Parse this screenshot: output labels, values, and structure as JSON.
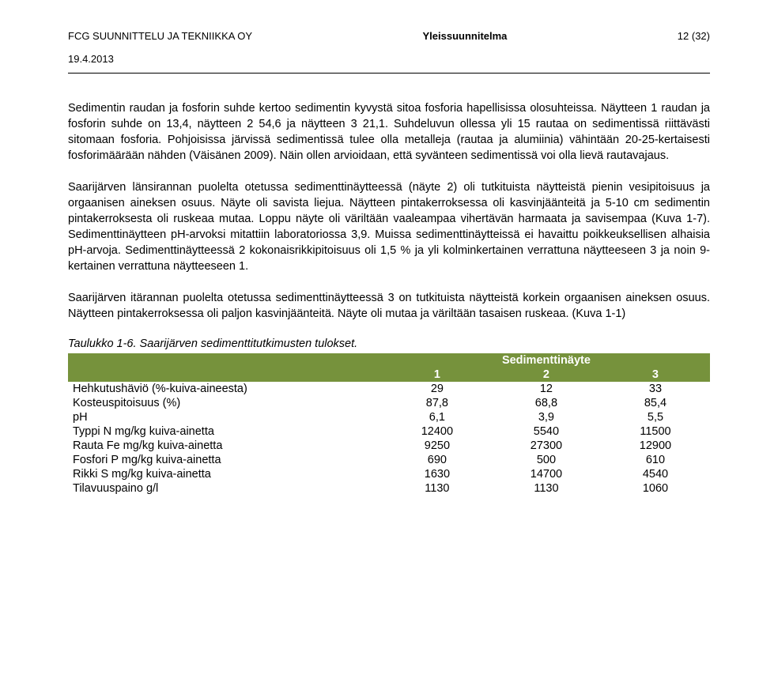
{
  "header": {
    "company": "FCG SUUNNITTELU JA TEKNIIKKA OY",
    "doc_title": "Yleissuunnitelma",
    "page_of": "12 (32)",
    "date": "19.4.2013"
  },
  "paragraphs": {
    "p1": "Sedimentin raudan ja fosforin suhde kertoo sedimentin kyvystä sitoa fosforia hapellisissa olosuhteissa. Näytteen 1 raudan ja fosforin suhde on 13,4, näytteen 2 54,6 ja näytteen 3 21,1. Suhdeluvun ollessa yli 15 rautaa on sedimentissä riittävästi sitomaan fosforia. Pohjoisissa järvissä sedimentissä tulee olla metalleja (rautaa ja alumiinia) vähintään 20-25-kertaisesti fosforimäärään nähden (Väisänen 2009). Näin ollen arvioidaan, että syvänteen sedimentissä voi olla lievä rautavajaus.",
    "p2": "Saarijärven länsirannan puolelta otetussa sedimenttinäytteessä (näyte 2) oli tutkituista näytteistä pienin vesipitoisuus ja orgaanisen aineksen osuus.  Näyte oli savista liejua. Näytteen pintakerroksessa oli kasvinjäänteitä ja 5-10 cm sedimentin pintakerroksesta oli ruskeaa mutaa. Loppu näyte oli väriltään vaaleampaa vihertävän harmaata ja savisempaa (Kuva 1-7). Sedimenttinäytteen pH-arvoksi mitattiin laboratoriossa 3,9. Muissa sedimenttinäytteissä ei havaittu poikkeuksellisen alhaisia pH-arvoja. Sedimenttinäytteessä 2 kokonaisrikkipitoisuus oli 1,5 % ja yli kolminkertainen verrattuna näytteeseen 3 ja noin 9-kertainen verrattuna näytteeseen 1.",
    "p3": "Saarijärven itärannan puolelta otetussa sedimenttinäytteessä 3 on tutkituista näytteistä korkein orgaanisen aineksen osuus. Näytteen pintakerroksessa oli paljon kasvinjäänteitä. Näyte oli mutaa ja väriltään tasaisen ruskeaa. (Kuva 1-1)"
  },
  "table": {
    "caption": "Taulukko 1-6. Saarijärven sedimenttitutkimusten tulokset.",
    "header_group": "Sedimenttinäyte",
    "col_headers": [
      "1",
      "2",
      "3"
    ],
    "rows": [
      {
        "label": "Hehkutushäviö (%-kuiva-aineesta)",
        "v": [
          "29",
          "12",
          "33"
        ]
      },
      {
        "label": "Kosteuspitoisuus (%)",
        "v": [
          "87,8",
          "68,8",
          "85,4"
        ]
      },
      {
        "label": "pH",
        "v": [
          "6,1",
          "3,9",
          "5,5"
        ]
      },
      {
        "label": "Typpi N mg/kg kuiva-ainetta",
        "v": [
          "12400",
          "5540",
          "11500"
        ]
      },
      {
        "label": "Rauta Fe mg/kg kuiva-ainetta",
        "v": [
          "9250",
          "27300",
          "12900"
        ]
      },
      {
        "label": "Fosfori P mg/kg kuiva-ainetta",
        "v": [
          "690",
          "500",
          "610"
        ]
      },
      {
        "label": "Rikki S mg/kg kuiva-ainetta",
        "v": [
          "1630",
          "14700",
          "4540"
        ]
      },
      {
        "label": "Tilavuuspaino g/l",
        "v": [
          "1130",
          "1130",
          "1060"
        ]
      }
    ],
    "style": {
      "header_bg": "#76923c",
      "header_fg": "#ffffff"
    }
  }
}
